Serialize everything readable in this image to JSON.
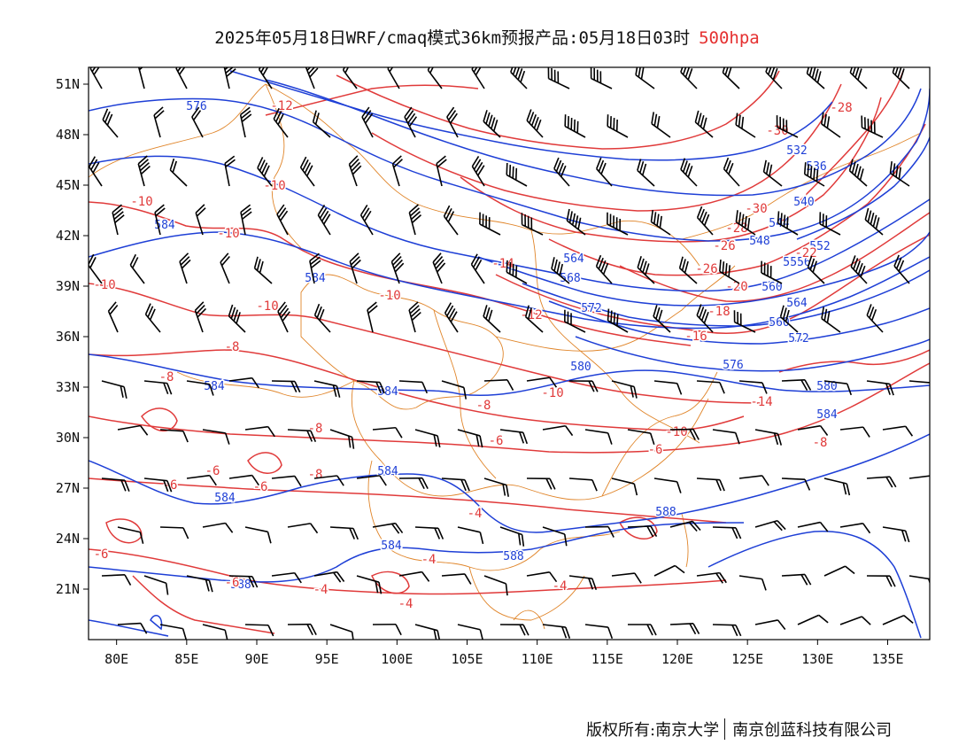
{
  "title": {
    "main": "2025年05月18日WRF/cmaq模式36km预报产品:05月18日03时",
    "level": "500hpa"
  },
  "colors": {
    "height_contour": "#1e3fd6",
    "temperature_contour": "#e03a3a",
    "boundary": "#e0852a",
    "wind_barb": "#000000",
    "level_text": "#e53030"
  },
  "axes": {
    "lon_ticks": [
      "80E",
      "85E",
      "90E",
      "95E",
      "100E",
      "105E",
      "110E",
      "115E",
      "120E",
      "125E",
      "130E",
      "135E"
    ],
    "lat_ticks": [
      "51N",
      "48N",
      "45N",
      "42N",
      "39N",
      "36N",
      "33N",
      "30N",
      "27N",
      "24N",
      "21N"
    ],
    "lon_values": [
      80,
      85,
      90,
      95,
      100,
      105,
      110,
      115,
      120,
      125,
      130,
      135
    ],
    "lat_values": [
      51,
      48,
      45,
      42,
      39,
      36,
      33,
      30,
      27,
      24,
      21
    ],
    "lon_range": [
      78,
      138
    ],
    "lat_range": [
      18,
      52
    ]
  },
  "height_labels": [
    "576",
    "584",
    "584",
    "584",
    "584",
    "584",
    "584",
    "584",
    "588",
    "588",
    "588",
    "572",
    "568",
    "564",
    "560",
    "564",
    "568",
    "572",
    "576",
    "580",
    "584",
    "544",
    "540",
    "536",
    "532",
    "548",
    "552",
    "556",
    "560",
    "580"
  ],
  "temperature_labels": [
    "-12",
    "-10",
    "-10",
    "-10",
    "-10",
    "-10",
    "-10",
    "-8",
    "-8",
    "-8",
    "-8",
    "-6",
    "-6",
    "-6",
    "-6",
    "-6",
    "-4",
    "-4",
    "-4",
    "-4",
    "-4",
    "-14",
    "-12",
    "-10",
    "-8",
    "-6",
    "-6",
    "-30",
    "-28",
    "-26",
    "-30",
    "-28",
    "-26",
    "-22",
    "-20",
    "-18",
    "-16",
    "-14",
    "-10",
    "-8"
  ],
  "credit": {
    "owner": "版权所有:南京大学",
    "company": "南京创蓝科技有限公司"
  }
}
